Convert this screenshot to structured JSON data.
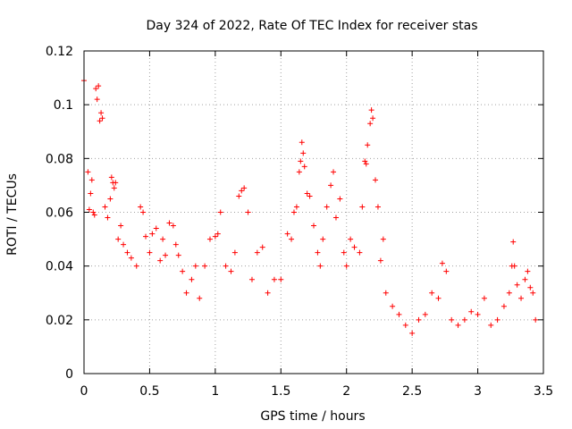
{
  "chart_data": {
    "type": "scatter",
    "title": "Day 324 of 2022, Rate Of TEC Index for receiver stas",
    "xlabel": "GPS time / hours",
    "ylabel": "ROTI / TECUs",
    "xlim": [
      0,
      3.5
    ],
    "ylim": [
      0,
      0.12
    ],
    "xticks": [
      "0",
      "0.5",
      "1",
      "1.5",
      "2",
      "2.5",
      "3",
      "3.5"
    ],
    "yticks": [
      "0",
      "0.02",
      "0.04",
      "0.06",
      "0.08",
      "0.1",
      "0.12"
    ],
    "grid": true,
    "marker": "+",
    "color": "#ff0000",
    "series": [
      {
        "name": "ROTI",
        "points": [
          [
            0.0,
            0.109
          ],
          [
            0.03,
            0.075
          ],
          [
            0.04,
            0.061
          ],
          [
            0.05,
            0.067
          ],
          [
            0.06,
            0.072
          ],
          [
            0.07,
            0.06
          ],
          [
            0.08,
            0.059
          ],
          [
            0.09,
            0.106
          ],
          [
            0.1,
            0.102
          ],
          [
            0.11,
            0.107
          ],
          [
            0.12,
            0.094
          ],
          [
            0.13,
            0.097
          ],
          [
            0.14,
            0.095
          ],
          [
            0.16,
            0.062
          ],
          [
            0.18,
            0.058
          ],
          [
            0.2,
            0.065
          ],
          [
            0.21,
            0.073
          ],
          [
            0.22,
            0.071
          ],
          [
            0.23,
            0.069
          ],
          [
            0.24,
            0.071
          ],
          [
            0.26,
            0.05
          ],
          [
            0.28,
            0.055
          ],
          [
            0.3,
            0.048
          ],
          [
            0.33,
            0.045
          ],
          [
            0.36,
            0.043
          ],
          [
            0.4,
            0.04
          ],
          [
            0.43,
            0.062
          ],
          [
            0.45,
            0.06
          ],
          [
            0.47,
            0.051
          ],
          [
            0.5,
            0.045
          ],
          [
            0.52,
            0.052
          ],
          [
            0.55,
            0.054
          ],
          [
            0.58,
            0.042
          ],
          [
            0.6,
            0.05
          ],
          [
            0.62,
            0.044
          ],
          [
            0.65,
            0.056
          ],
          [
            0.68,
            0.055
          ],
          [
            0.7,
            0.048
          ],
          [
            0.72,
            0.044
          ],
          [
            0.75,
            0.038
          ],
          [
            0.78,
            0.03
          ],
          [
            0.82,
            0.035
          ],
          [
            0.85,
            0.04
          ],
          [
            0.88,
            0.028
          ],
          [
            0.92,
            0.04
          ],
          [
            0.96,
            0.05
          ],
          [
            1.0,
            0.051
          ],
          [
            1.02,
            0.052
          ],
          [
            1.04,
            0.06
          ],
          [
            1.08,
            0.04
          ],
          [
            1.12,
            0.038
          ],
          [
            1.15,
            0.045
          ],
          [
            1.18,
            0.066
          ],
          [
            1.2,
            0.068
          ],
          [
            1.22,
            0.069
          ],
          [
            1.25,
            0.06
          ],
          [
            1.28,
            0.035
          ],
          [
            1.32,
            0.045
          ],
          [
            1.36,
            0.047
          ],
          [
            1.4,
            0.03
          ],
          [
            1.45,
            0.035
          ],
          [
            1.5,
            0.035
          ],
          [
            1.55,
            0.052
          ],
          [
            1.58,
            0.05
          ],
          [
            1.6,
            0.06
          ],
          [
            1.62,
            0.062
          ],
          [
            1.64,
            0.075
          ],
          [
            1.65,
            0.079
          ],
          [
            1.66,
            0.086
          ],
          [
            1.67,
            0.082
          ],
          [
            1.68,
            0.077
          ],
          [
            1.7,
            0.067
          ],
          [
            1.72,
            0.066
          ],
          [
            1.75,
            0.055
          ],
          [
            1.78,
            0.045
          ],
          [
            1.8,
            0.04
          ],
          [
            1.82,
            0.05
          ],
          [
            1.85,
            0.062
          ],
          [
            1.88,
            0.07
          ],
          [
            1.9,
            0.075
          ],
          [
            1.92,
            0.058
          ],
          [
            1.95,
            0.065
          ],
          [
            1.98,
            0.045
          ],
          [
            2.0,
            0.04
          ],
          [
            2.03,
            0.05
          ],
          [
            2.06,
            0.047
          ],
          [
            2.1,
            0.045
          ],
          [
            2.12,
            0.062
          ],
          [
            2.14,
            0.079
          ],
          [
            2.15,
            0.078
          ],
          [
            2.16,
            0.085
          ],
          [
            2.18,
            0.093
          ],
          [
            2.19,
            0.098
          ],
          [
            2.2,
            0.095
          ],
          [
            2.22,
            0.072
          ],
          [
            2.24,
            0.062
          ],
          [
            2.26,
            0.042
          ],
          [
            2.28,
            0.05
          ],
          [
            2.3,
            0.03
          ],
          [
            2.35,
            0.025
          ],
          [
            2.4,
            0.022
          ],
          [
            2.45,
            0.018
          ],
          [
            2.5,
            0.015
          ],
          [
            2.55,
            0.02
          ],
          [
            2.6,
            0.022
          ],
          [
            2.65,
            0.03
          ],
          [
            2.7,
            0.028
          ],
          [
            2.73,
            0.041
          ],
          [
            2.76,
            0.038
          ],
          [
            2.8,
            0.02
          ],
          [
            2.85,
            0.018
          ],
          [
            2.9,
            0.02
          ],
          [
            2.95,
            0.023
          ],
          [
            3.0,
            0.022
          ],
          [
            3.05,
            0.028
          ],
          [
            3.1,
            0.018
          ],
          [
            3.15,
            0.02
          ],
          [
            3.2,
            0.025
          ],
          [
            3.24,
            0.03
          ],
          [
            3.26,
            0.04
          ],
          [
            3.27,
            0.049
          ],
          [
            3.28,
            0.04
          ],
          [
            3.3,
            0.033
          ],
          [
            3.33,
            0.028
          ],
          [
            3.36,
            0.035
          ],
          [
            3.38,
            0.038
          ],
          [
            3.4,
            0.032
          ],
          [
            3.42,
            0.03
          ],
          [
            3.44,
            0.02
          ]
        ]
      }
    ]
  }
}
